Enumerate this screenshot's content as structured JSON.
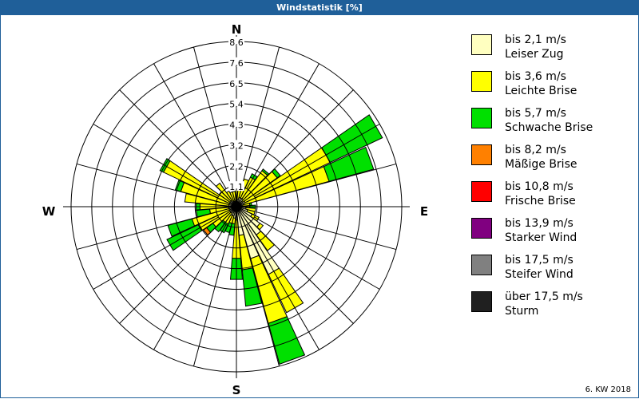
{
  "title": "Windstatistik [%]",
  "footer": "6. KW 2018",
  "chart_data": {
    "type": "windrose",
    "title": "Windstatistik [%]",
    "unit": "%",
    "directions_label": {
      "n": "N",
      "e": "E",
      "s": "S",
      "w": "W"
    },
    "ring_labels": [
      "1,1",
      "2,2",
      "3,2",
      "4,3",
      "5,4",
      "6,5",
      "7,6",
      "8,6"
    ],
    "rmax": 8.6,
    "sector_degrees": 10,
    "legend": [
      {
        "speed": "bis 2,1 m/s",
        "name": "Leiser Zug",
        "color": "#ffffc0"
      },
      {
        "speed": "bis 3,6 m/s",
        "name": "Leichte Brise",
        "color": "#ffff00"
      },
      {
        "speed": "bis 5,7 m/s",
        "name": "Schwache Brise",
        "color": "#00e000"
      },
      {
        "speed": "bis 8,2 m/s",
        "name": "Mäßige Brise",
        "color": "#ff8000"
      },
      {
        "speed": "bis 10,8 m/s",
        "name": "Frische Brise",
        "color": "#ff0000"
      },
      {
        "speed": "bis 13,9 m/s",
        "name": "Starker Wind",
        "color": "#800080"
      },
      {
        "speed": "bis 17,5 m/s",
        "name": "Steifer Wind",
        "color": "#808080"
      },
      {
        "speed": "über 17,5 m/s",
        "name": "Sturm",
        "color": "#202020"
      }
    ],
    "series_note": "values per direction (0..350 deg, step 10) are percentages per speed class: [Leiser Zug, Leichte Brise, Schwache Brise, Mäßige Brise]",
    "sectors": [
      [
        0.4,
        0.5,
        0,
        0
      ],
      [
        0.4,
        0.5,
        0,
        0
      ],
      [
        0.5,
        1.0,
        0,
        0
      ],
      [
        0.5,
        1.2,
        0.2,
        0
      ],
      [
        0.5,
        1.8,
        0.1,
        0
      ],
      [
        0.4,
        2.2,
        0.2,
        0
      ],
      [
        0.5,
        4.9,
        3.0,
        0
      ],
      [
        0.4,
        4.6,
        2.4,
        0
      ],
      [
        0.3,
        0.4,
        0.1,
        0
      ],
      [
        0.4,
        0.3,
        0.3,
        0
      ],
      [
        0.5,
        0.5,
        0,
        0
      ],
      [
        0.6,
        0.4,
        0,
        0
      ],
      [
        0.9,
        0.4,
        0,
        0
      ],
      [
        1.5,
        0.2,
        0,
        0
      ],
      [
        1.8,
        1.0,
        0,
        0
      ],
      [
        3.9,
        2.2,
        0,
        0
      ],
      [
        2.8,
        3.5,
        2.2,
        0
      ],
      [
        1.5,
        1.8,
        1.9,
        0
      ],
      [
        0.7,
        2.0,
        1.1,
        0
      ],
      [
        0.6,
        0.3,
        0.6,
        0
      ],
      [
        0.5,
        0.4,
        0.5,
        0
      ],
      [
        0.5,
        0.5,
        0.5,
        0
      ],
      [
        0.4,
        0.6,
        0.6,
        0
      ],
      [
        0.4,
        1.1,
        0.4,
        0.2
      ],
      [
        0.4,
        1.8,
        1.8,
        0
      ],
      [
        0.4,
        2.0,
        1.3,
        0
      ],
      [
        0.4,
        1.0,
        0.7,
        0
      ],
      [
        0.4,
        1.5,
        0.2,
        0
      ],
      [
        0.4,
        2.3,
        0,
        0
      ],
      [
        0.4,
        2.6,
        0.3,
        0
      ],
      [
        0.4,
        3.8,
        0.2,
        0
      ],
      [
        0.4,
        0.7,
        0,
        0
      ],
      [
        0.4,
        1.1,
        0,
        0
      ],
      [
        0.3,
        0.6,
        0,
        0
      ],
      [
        0.3,
        0.5,
        0,
        0
      ],
      [
        0.3,
        0.5,
        0,
        0
      ]
    ]
  }
}
